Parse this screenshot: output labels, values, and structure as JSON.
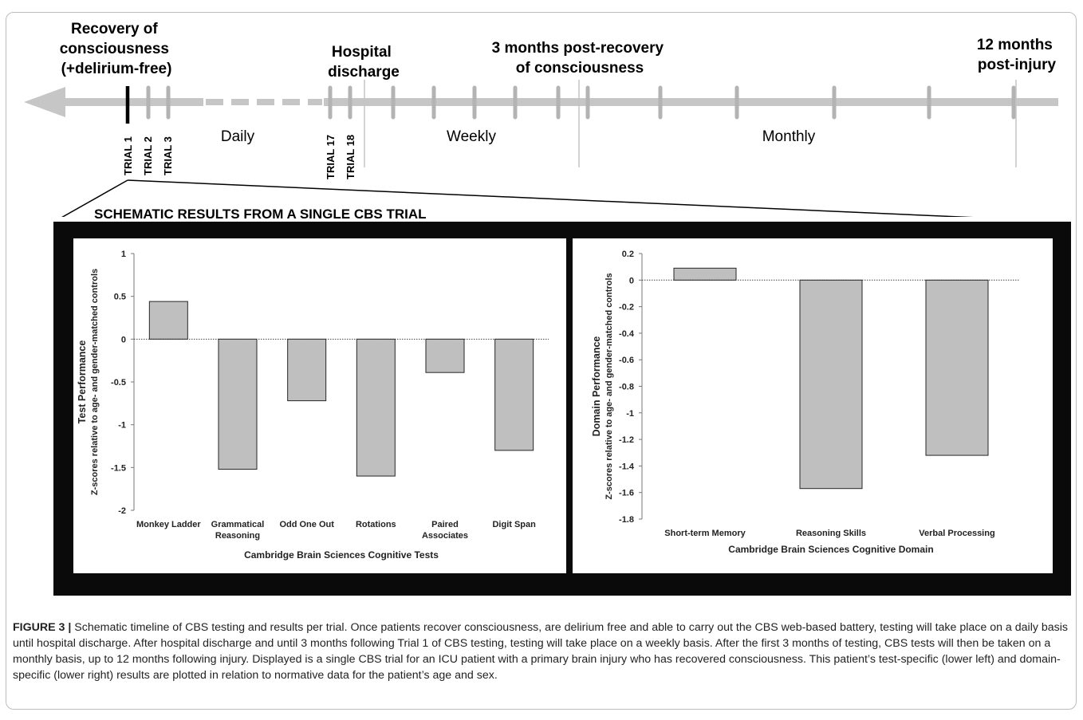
{
  "timeline": {
    "milestones": {
      "recovery": [
        "Recovery of",
        "consciousness",
        "(+delirium-free)"
      ],
      "discharge": [
        "Hospital",
        "discharge"
      ],
      "three_months": [
        "3 months post-recovery",
        "of consciousness"
      ],
      "twelve_months": [
        "12 months",
        "post-injury"
      ]
    },
    "trials": [
      "TRIAL 1",
      "TRIAL 2",
      "TRIAL 3",
      "TRIAL 17",
      "TRIAL 18"
    ],
    "phases": {
      "daily": "Daily",
      "weekly": "Weekly",
      "monthly": "Monthly"
    }
  },
  "inset_title": "SCHEMATIC RESULTS FROM A SINGLE CBS TRIAL",
  "chart_data": [
    {
      "type": "bar",
      "title": "",
      "categories": [
        [
          "Monkey Ladder"
        ],
        [
          "Grammatical",
          "Reasoning"
        ],
        [
          "Odd One Out"
        ],
        [
          "Rotations"
        ],
        [
          "Paired",
          "Associates"
        ],
        [
          "Digit Span"
        ]
      ],
      "values": [
        0.44,
        -1.52,
        -0.72,
        -1.6,
        -0.39,
        -1.3
      ],
      "xlabel": "Cambridge Brain Sciences Cognitive Tests",
      "ylabel": [
        "Test Performance",
        "Z-scores relative to age- and gender-matched controls"
      ],
      "ylim": [
        -2,
        1
      ],
      "yticks": [
        1,
        0.5,
        0,
        -0.5,
        -1,
        -1.5,
        -2
      ],
      "ytick_labels": [
        "1",
        "0.5",
        "0",
        "-0.5",
        "-1",
        "-1.5",
        "-2"
      ],
      "bar_color": "#bfbfbf",
      "grid": false
    },
    {
      "type": "bar",
      "title": "",
      "categories": [
        [
          "Short-term Memory"
        ],
        [
          "Reasoning Skills"
        ],
        [
          "Verbal Processing"
        ]
      ],
      "values": [
        0.09,
        -1.57,
        -1.32
      ],
      "xlabel": "Cambridge Brain Sciences Cognitive Domain",
      "ylabel": [
        "Domain Performance",
        "Z-scores relative to age- and gender-matched controls"
      ],
      "ylim": [
        -1.8,
        0.2
      ],
      "yticks": [
        0.2,
        0,
        -0.2,
        -0.4,
        -0.6,
        -0.8,
        -1,
        -1.2,
        -1.4,
        -1.6,
        -1.8
      ],
      "ytick_labels": [
        "0.2",
        "0",
        "-0.2",
        "-0.4",
        "-0.6",
        "-0.8",
        "-1",
        "-1.2",
        "-1.4",
        "-1.6",
        "-1.8"
      ],
      "bar_color": "#bfbfbf",
      "grid": false
    }
  ],
  "caption": {
    "label": "FIGURE 3 |",
    "text": "Schematic timeline of CBS testing and results per trial. Once patients recover consciousness, are delirium free and able to carry out the CBS web-based battery, testing will take place on a daily basis until hospital discharge. After hospital discharge and until 3 months following Trial 1 of CBS testing, testing will take place on a weekly basis. After the first 3 months of testing, CBS tests will then be taken on a monthly basis, up to 12 months following injury. Displayed is a single CBS trial for an ICU patient with a primary brain injury who has recovered consciousness. This patient’s test-specific (lower left) and domain-specific (lower right) results are plotted in relation to normative data for the patient’s age and sex."
  },
  "colors": {
    "timeline_gray": "#c6c6c6",
    "tick_gray": "#b3b3b3",
    "bar_fill": "#bfbfbf",
    "bar_stroke": "#262626",
    "inset_frame": "#0a0a0a"
  }
}
